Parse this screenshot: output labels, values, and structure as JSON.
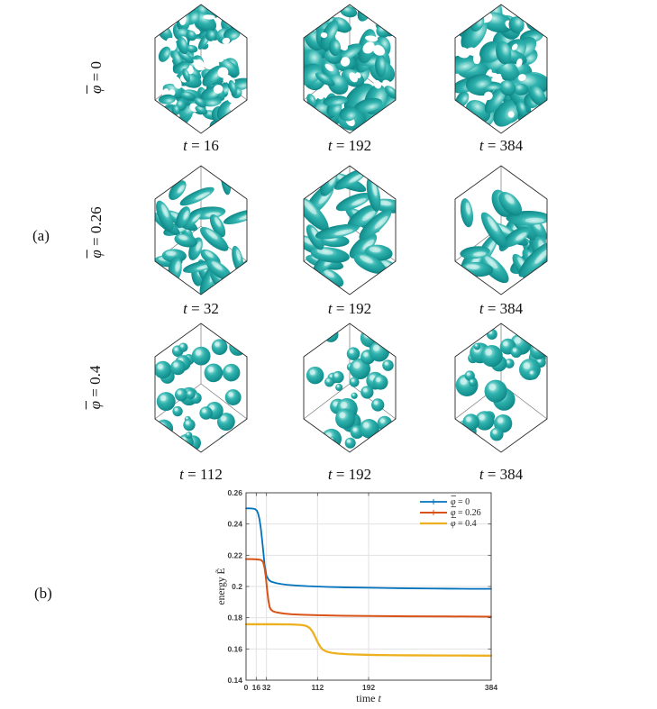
{
  "figure": {
    "panel_a_label": "(a)",
    "panel_b_label": "(b)"
  },
  "surface_colors": {
    "highlight": "#C2F1EB",
    "mid": "#2FB2AE",
    "deep": "#13908F",
    "shadow": "#0A6B6F",
    "wireframe": "#2b2b2b"
  },
  "rows": [
    {
      "label": {
        "symbol": "φ",
        "eq": " = 0"
      },
      "morphology": "bicontinuous network",
      "panels": [
        {
          "caption": {
            "var": "t",
            "eq": " = 16"
          },
          "blob": {
            "type": "maze",
            "n": 60,
            "holes": 30,
            "s": 1.0,
            "seed": 101
          }
        },
        {
          "caption": {
            "var": "t",
            "eq": " = 192"
          },
          "blob": {
            "type": "maze",
            "n": 42,
            "holes": 20,
            "s": 1.35,
            "seed": 102
          }
        },
        {
          "caption": {
            "var": "t",
            "eq": " = 384"
          },
          "blob": {
            "type": "maze",
            "n": 40,
            "holes": 18,
            "s": 1.4,
            "seed": 103
          }
        }
      ]
    },
    {
      "label": {
        "symbol": "φ",
        "eq": " = 0.26"
      },
      "morphology": "elongated worm-like domains",
      "panels": [
        {
          "caption": {
            "var": "t",
            "eq": " = 32"
          },
          "blob": {
            "type": "worms",
            "n": 30,
            "s": 0.95,
            "seed": 201
          }
        },
        {
          "caption": {
            "var": "t",
            "eq": " = 192"
          },
          "blob": {
            "type": "worms",
            "n": 24,
            "s": 1.15,
            "seed": 202
          }
        },
        {
          "caption": {
            "var": "t",
            "eq": " = 384"
          },
          "blob": {
            "type": "worms",
            "n": 23,
            "s": 1.18,
            "seed": 203
          }
        }
      ]
    },
    {
      "label": {
        "symbol": "φ",
        "eq": " = 0.4"
      },
      "morphology": "spherical droplets",
      "panels": [
        {
          "caption": {
            "var": "t",
            "eq": " = 112"
          },
          "blob": {
            "type": "drops",
            "n": 36,
            "s": 0.9,
            "seed": 301
          }
        },
        {
          "caption": {
            "var": "t",
            "eq": " = 192"
          },
          "blob": {
            "type": "drops",
            "n": 32,
            "s": 1.0,
            "seed": 302
          }
        },
        {
          "caption": {
            "var": "t",
            "eq": " = 384"
          },
          "blob": {
            "type": "drops",
            "n": 30,
            "s": 1.05,
            "seed": 303
          }
        }
      ]
    }
  ],
  "chart_data": {
    "type": "line",
    "xlabel": {
      "text": "time",
      "var": "t"
    },
    "ylabel": "energy Ẽ",
    "xlim": [
      0,
      384
    ],
    "ylim": [
      0.14,
      0.26
    ],
    "xtick_values": [
      0,
      16,
      32,
      112,
      192,
      384
    ],
    "xtick_labels": [
      "0",
      "16",
      "32",
      "112",
      "192",
      "384"
    ],
    "ytick_values": [
      0.14,
      0.16,
      0.18,
      0.2,
      0.22,
      0.24,
      0.26
    ],
    "ytick_labels": [
      "0.14",
      "0.16",
      "0.18",
      "0.2",
      "0.22",
      "0.24",
      "0.26"
    ],
    "grid": true,
    "legend_position": "northeast",
    "series": [
      {
        "name": {
          "symbol": "φ",
          "eq": " = 0"
        },
        "color": "#0072BD",
        "marker": "+",
        "stroke_width": 1.8,
        "x": [
          0,
          6,
          10,
          14,
          17,
          19,
          21,
          23,
          25,
          27,
          29,
          32,
          36,
          40,
          48,
          56,
          64,
          80,
          96,
          128,
          160,
          192,
          224,
          256,
          288,
          320,
          352,
          384
        ],
        "y": [
          0.25,
          0.25,
          0.2499,
          0.2496,
          0.2486,
          0.2466,
          0.2432,
          0.2378,
          0.2305,
          0.2225,
          0.2142,
          0.2068,
          0.204,
          0.203,
          0.2021,
          0.2015,
          0.2011,
          0.2006,
          0.2002,
          0.1997,
          0.1994,
          0.1992,
          0.199,
          0.1988,
          0.1987,
          0.1986,
          0.1985,
          0.1985
        ]
      },
      {
        "name": {
          "symbol": "φ",
          "eq": " = 0.26"
        },
        "color": "#D95319",
        "marker": "+",
        "stroke_width": 2.0,
        "x": [
          0,
          8,
          16,
          22,
          25,
          27,
          29,
          31,
          33,
          35,
          37,
          39,
          42,
          46,
          52,
          60,
          72,
          88,
          112,
          144,
          192,
          256,
          320,
          384
        ],
        "y": [
          0.2175,
          0.2175,
          0.2174,
          0.2171,
          0.2166,
          0.2153,
          0.212,
          0.206,
          0.198,
          0.191,
          0.1868,
          0.1852,
          0.1842,
          0.1836,
          0.1831,
          0.1826,
          0.1822,
          0.1819,
          0.1816,
          0.1813,
          0.1811,
          0.1809,
          0.1808,
          0.1807
        ]
      },
      {
        "name": {
          "symbol": "φ",
          "eq": " = 0.4"
        },
        "color": "#EDB120",
        "marker": "",
        "stroke_width": 2.3,
        "x": [
          0,
          40,
          70,
          85,
          92,
          96,
          100,
          104,
          108,
          112,
          116,
          120,
          126,
          134,
          144,
          160,
          192,
          224,
          256,
          320,
          384
        ],
        "y": [
          0.1758,
          0.1758,
          0.1757,
          0.1754,
          0.175,
          0.1744,
          0.1733,
          0.1712,
          0.168,
          0.1645,
          0.1615,
          0.1596,
          0.1583,
          0.1575,
          0.157,
          0.1566,
          0.1562,
          0.156,
          0.1559,
          0.1558,
          0.1557
        ]
      }
    ]
  }
}
